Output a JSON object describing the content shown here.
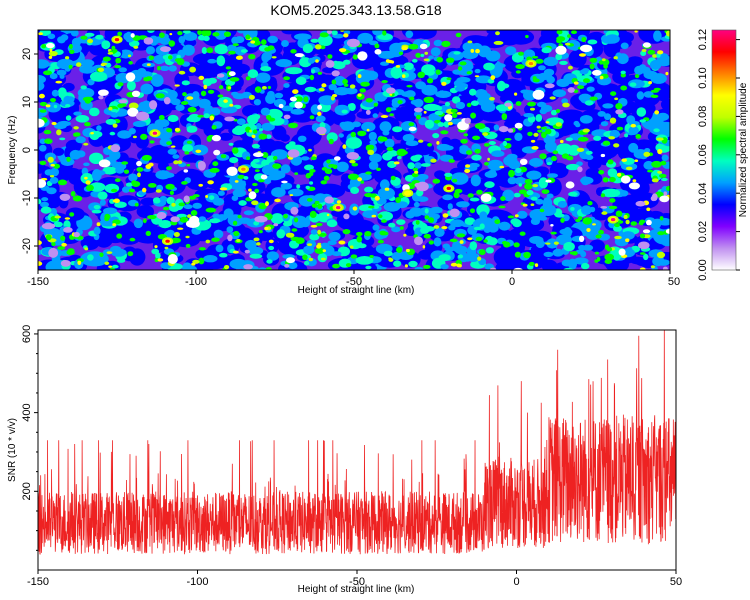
{
  "title": "KOM5.2025.343.13.58.G18",
  "chart_data": [
    {
      "type": "heatmap",
      "title": "KOM5.2025.343.13.58.G18",
      "xlabel": "Height of straight line (km)",
      "ylabel": "Frequency (Hz)",
      "xlim": [
        -150,
        50
      ],
      "ylim": [
        -25,
        25
      ],
      "x_ticks": [
        -150,
        -100,
        -50,
        0,
        50
      ],
      "y_ticks": [
        -20,
        -10,
        0,
        10,
        20
      ],
      "colorbar": {
        "label": "Normalized spectral amplitude",
        "range": [
          0,
          0.125
        ],
        "ticks": [
          0.0,
          0.02,
          0.04,
          0.06,
          0.08,
          0.1,
          0.12
        ],
        "tick_labels": [
          "0.00",
          "0.02",
          "0.04",
          "0.06",
          "0.08",
          "0.10",
          "0.12"
        ],
        "colors": [
          "#ffffff",
          "#c090f0",
          "#8000ff",
          "#0000ff",
          "#00a0ff",
          "#00ffc0",
          "#00ff00",
          "#c0ff00",
          "#ffff00",
          "#ff8000",
          "#ff0000",
          "#ff0080"
        ]
      },
      "description_values": "Noise-like speckled amplitude field, mostly 0.02-0.06 with scattered peaks up to ~0.12",
      "peaks": [
        {
          "x": -125,
          "y": 23,
          "v": 0.11
        },
        {
          "x": -113,
          "y": 3.5,
          "v": 0.12
        },
        {
          "x": -109,
          "y": -19,
          "v": 0.11
        },
        {
          "x": -55,
          "y": -12,
          "v": 0.12
        },
        {
          "x": -20,
          "y": -8,
          "v": 0.11
        },
        {
          "x": -33,
          "y": -9,
          "v": 0.09
        },
        {
          "x": 32,
          "y": -14.5,
          "v": 0.12
        },
        {
          "x": -85,
          "y": -4,
          "v": 0.1
        },
        {
          "x": 6,
          "y": 18,
          "v": 0.1
        }
      ]
    },
    {
      "type": "line",
      "xlabel": "Height of straight line (km)",
      "ylabel": "SNR (10 * v/v)",
      "xlim": [
        -150,
        50
      ],
      "ylim": [
        0,
        610
      ],
      "x_ticks": [
        -150,
        -100,
        -50,
        0,
        50
      ],
      "y_ticks": [
        200,
        400,
        600
      ],
      "color": "#ee2222",
      "segments": [
        {
          "x_from": -150,
          "x_to": -10,
          "mean": 120,
          "spread": 160,
          "max": 330
        },
        {
          "x_from": -10,
          "x_to": 10,
          "mean": 170,
          "spread": 230,
          "max": 480
        },
        {
          "x_from": 10,
          "x_to": 50,
          "mean": 230,
          "spread": 330,
          "max": 610
        }
      ]
    }
  ]
}
